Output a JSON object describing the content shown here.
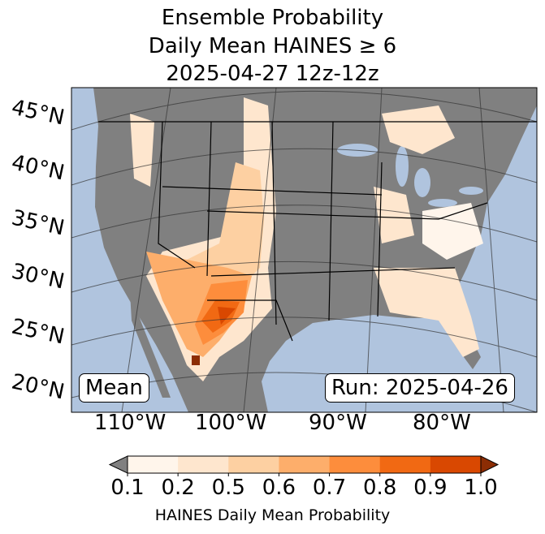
{
  "title": {
    "line1": "Ensemble Probability",
    "line2": "Daily Mean HAINES ≥ 6",
    "line3": "2025-04-27 12z-12z"
  },
  "lat_labels": [
    "45°N",
    "40°N",
    "35°N",
    "30°N",
    "25°N",
    "20°N"
  ],
  "lon_labels": [
    "110°W",
    "100°W",
    "90°W",
    "80°W"
  ],
  "mean_label": "Mean",
  "run_label": "Run: 2025-04-26",
  "colorbar": {
    "ticks": [
      "0.1",
      "0.2",
      "0.5",
      "0.6",
      "0.7",
      "0.8",
      "0.9",
      "1.0"
    ],
    "label": "HAINES Daily Mean Probability",
    "colors": [
      "#fff5eb",
      "#fee6ce",
      "#fdd0a2",
      "#fdae6b",
      "#fd8d3c",
      "#f16913",
      "#d94801"
    ],
    "under_color": "#808080",
    "over_color": "#8c2d04"
  },
  "colors": {
    "ocean": "#b0c4de",
    "land": "#808080"
  }
}
